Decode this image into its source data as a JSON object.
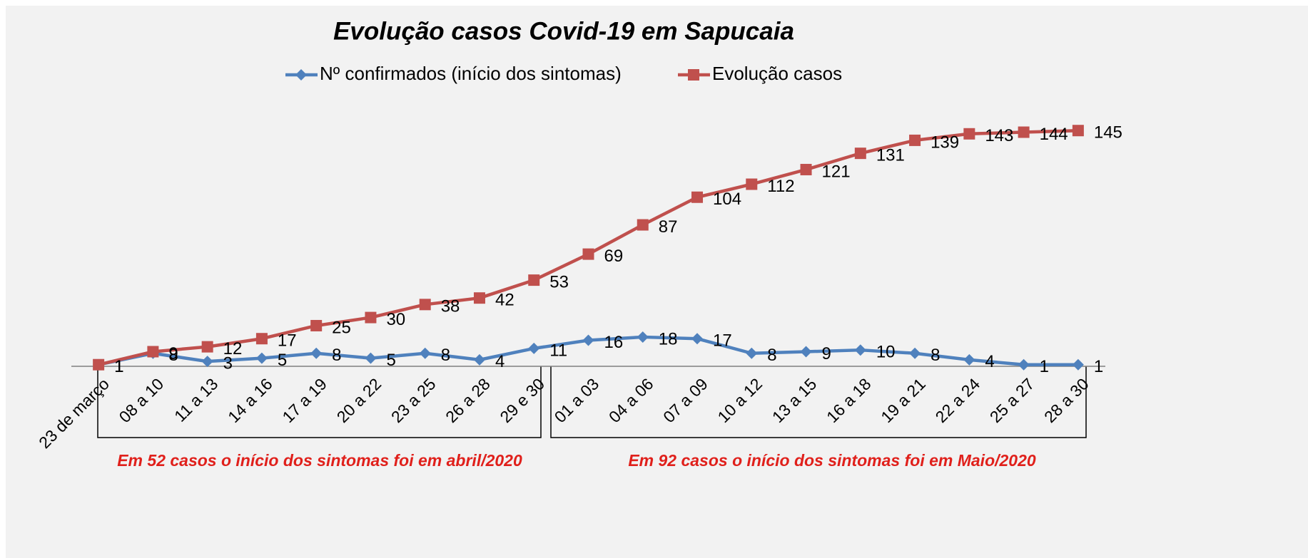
{
  "chart_data": {
    "type": "line",
    "title": "Evolução casos Covid-19 em Sapucaia",
    "categories": [
      "23 de março",
      "08 a 10",
      "11 a 13",
      "14 a 16",
      "17 a 19",
      "20 a 22",
      "23 a 25",
      "26 a 28",
      "29 e 30",
      "01 a 03",
      "04 a 06",
      "07 a 09",
      "10 a 12",
      "13 a 15",
      "16 a 18",
      "19 a 21",
      "22 a 24",
      "25 a 27",
      "28 a 30"
    ],
    "series": [
      {
        "name": "Nº confirmados (início dos sintomas)",
        "color": "#4f81bd",
        "marker": "diamond",
        "values": [
          1,
          8,
          3,
          5,
          8,
          5,
          8,
          4,
          11,
          16,
          18,
          17,
          8,
          9,
          10,
          8,
          4,
          1,
          1
        ]
      },
      {
        "name": "Evolução casos",
        "color": "#c0504d",
        "marker": "square",
        "values": [
          1,
          9,
          12,
          17,
          25,
          30,
          38,
          42,
          53,
          69,
          87,
          104,
          112,
          121,
          131,
          139,
          143,
          144,
          145
        ]
      }
    ],
    "ylim": [
      0,
      160
    ],
    "legend": "top",
    "annotations": [
      "Em 52 casos o início dos sintomas foi em  abril/2020",
      "Em 92  casos o início dos sintomas foi em Maio/2020"
    ]
  }
}
